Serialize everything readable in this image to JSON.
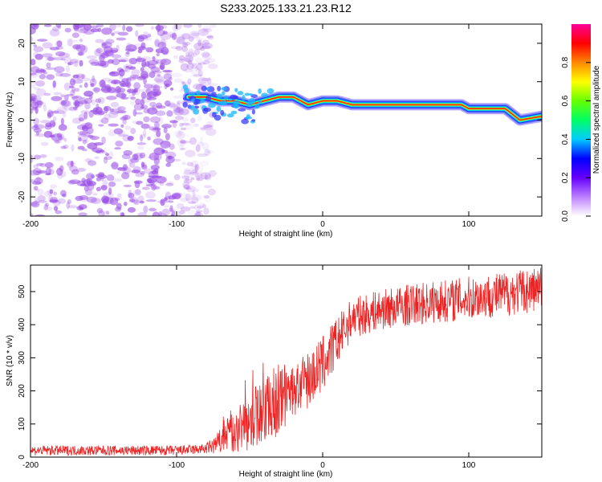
{
  "figure": {
    "title": "S233.2025.133.21.23.R12"
  },
  "colors": {
    "snr_line": "#ee2222",
    "noise": "#9a4ee6",
    "axis": "#000000"
  },
  "colorbar": {
    "label": "Normalized spectral amplitude",
    "ticks": [
      "0.0",
      "0.2",
      "0.4",
      "0.6",
      "0.8"
    ],
    "tick_values": [
      0.0,
      0.2,
      0.4,
      0.6,
      0.8
    ],
    "range": [
      0,
      1
    ]
  },
  "chart_data": [
    {
      "type": "heatmap",
      "title": "S233.2025.133.21.23.R12",
      "xlabel": "Height of straight line (km)",
      "ylabel": "Frequency (Hz)",
      "xlim": [
        -200,
        150
      ],
      "ylim": [
        -25,
        25
      ],
      "xticks": [
        -200,
        -100,
        0,
        100
      ],
      "xtick_labels": [
        "-200",
        "-100",
        "0",
        "100"
      ],
      "yticks": [
        -20,
        -10,
        0,
        10,
        20
      ],
      "ytick_labels": [
        "-20",
        "-10",
        "0",
        "10",
        "20"
      ],
      "signal_ridge": {
        "height_km": [
          -92,
          -80,
          -70,
          -60,
          -50,
          -40,
          -30,
          -20,
          -10,
          0,
          10,
          20,
          40,
          60,
          80,
          95,
          100,
          110,
          125,
          135,
          150
        ],
        "frequency_hz": [
          6,
          6,
          5,
          5,
          4,
          5,
          6,
          6,
          4,
          5,
          5,
          4,
          4,
          4,
          4,
          4,
          3,
          3,
          3,
          0,
          1
        ]
      },
      "noise_region_km": [
        -200,
        -90
      ]
    },
    {
      "type": "line",
      "xlabel": "Height of straight line (km)",
      "ylabel": "SNR (10 * v/v)",
      "xlim": [
        -200,
        150
      ],
      "ylim": [
        0,
        580
      ],
      "xticks": [
        -200,
        -100,
        0,
        100
      ],
      "xtick_labels": [
        "-200",
        "-100",
        "0",
        "100"
      ],
      "yticks": [
        0,
        100,
        200,
        300,
        400,
        500
      ],
      "ytick_labels": [
        "0",
        "100",
        "200",
        "300",
        "400",
        "500"
      ],
      "trend": {
        "x": [
          -200,
          -150,
          -100,
          -80,
          -70,
          -60,
          -50,
          -40,
          -30,
          -20,
          -10,
          0,
          10,
          20,
          40,
          60,
          80,
          100,
          120,
          150
        ],
        "y": [
          20,
          20,
          20,
          25,
          45,
          80,
          110,
          150,
          170,
          200,
          230,
          280,
          350,
          420,
          445,
          460,
          470,
          480,
          490,
          510
        ]
      },
      "noise_amplitude": {
        "x": [
          -200,
          -80,
          -70,
          -50,
          -30,
          -20,
          0,
          20,
          150
        ],
        "y": [
          15,
          15,
          40,
          90,
          110,
          80,
          90,
          60,
          70
        ]
      }
    }
  ]
}
